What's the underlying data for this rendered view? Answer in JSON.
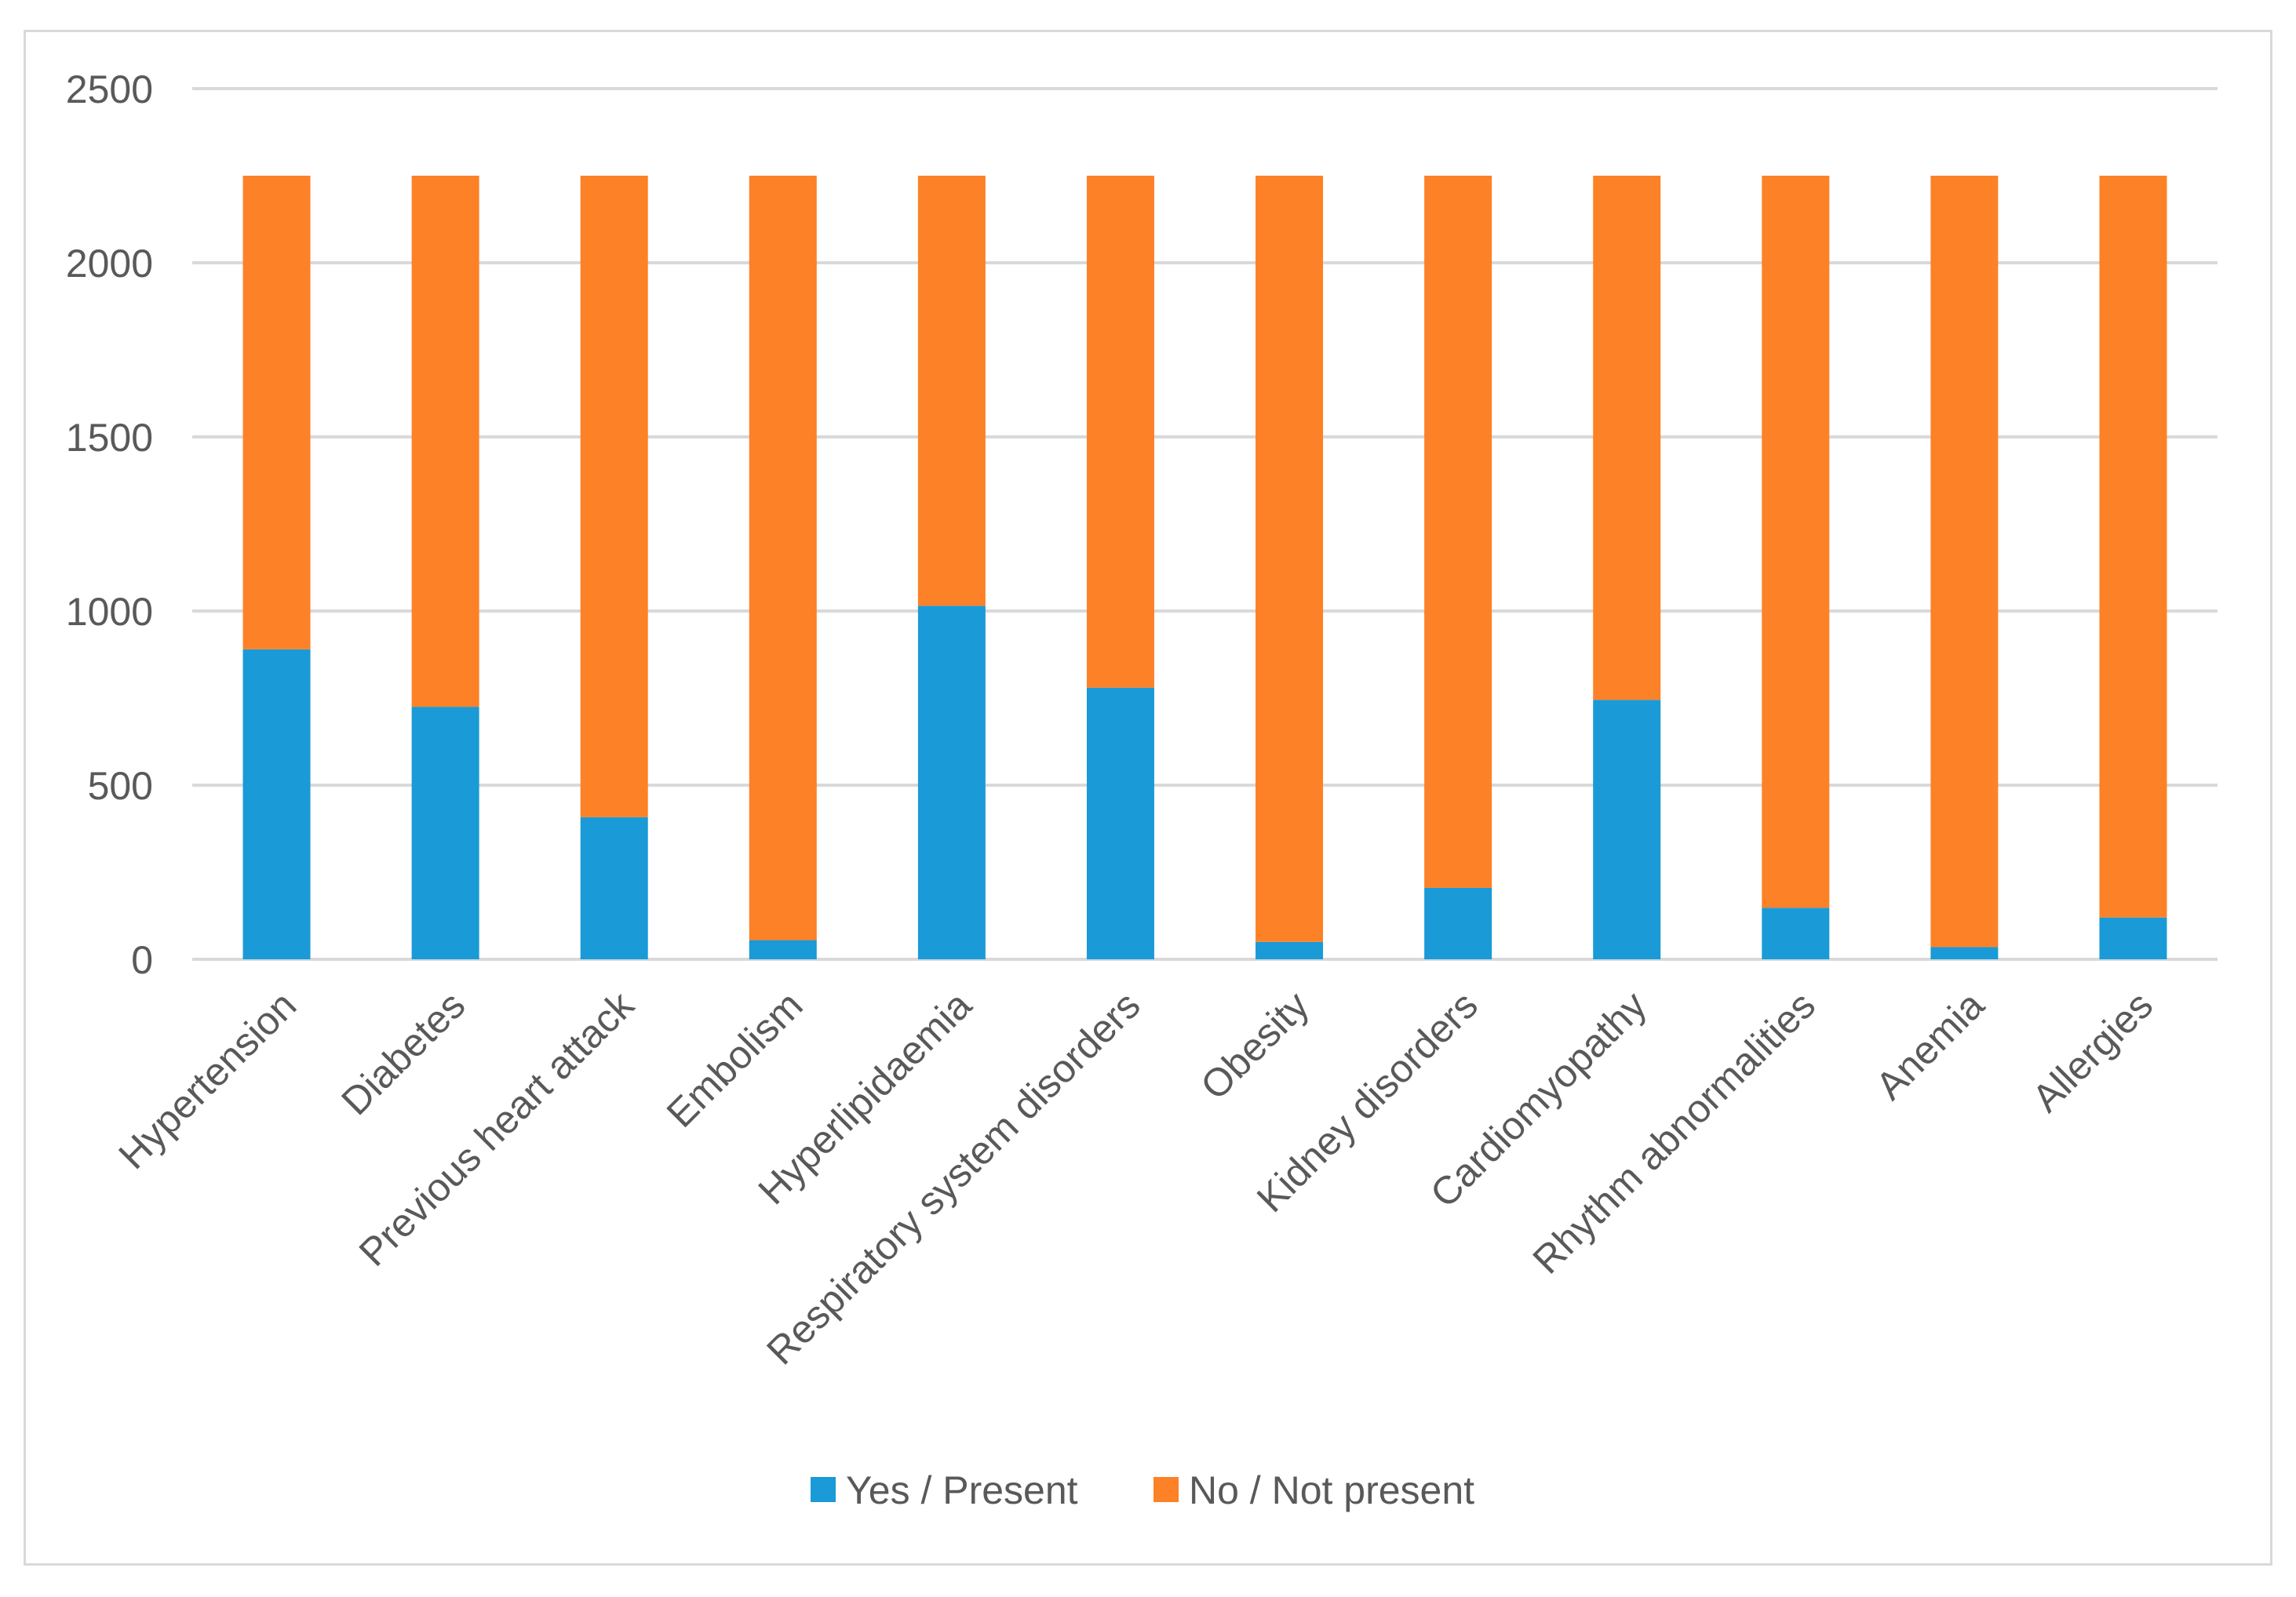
{
  "chart_data": {
    "type": "bar",
    "stacked": true,
    "title": "",
    "xlabel": "",
    "ylabel": "",
    "ylim": [
      0,
      2500
    ],
    "yticks": [
      0,
      500,
      1000,
      1500,
      2000,
      2500
    ],
    "grid": true,
    "legend_position": "bottom",
    "categories": [
      "Hypertension",
      "Diabetes",
      "Previous heart attack",
      "Embolism",
      "Hyperlipidaemia",
      "Respiratory system disorders",
      "Obesity",
      "Kidney disorders",
      "Cardiomyopathy",
      "Rhythm abnormalities",
      "Anemia",
      "Allergies"
    ],
    "series": [
      {
        "name": "Yes / Present",
        "color": "#1a9ad6",
        "values": [
          890,
          725,
          408,
          55,
          1015,
          780,
          50,
          205,
          745,
          148,
          35,
          120
        ]
      },
      {
        "name": "No / Not present",
        "color": "#fd8127",
        "values": [
          1360,
          1525,
          1842,
          2195,
          1235,
          1470,
          2200,
          2045,
          1505,
          2102,
          2215,
          2130
        ]
      }
    ],
    "gridline_color": "#d9d9d9"
  }
}
